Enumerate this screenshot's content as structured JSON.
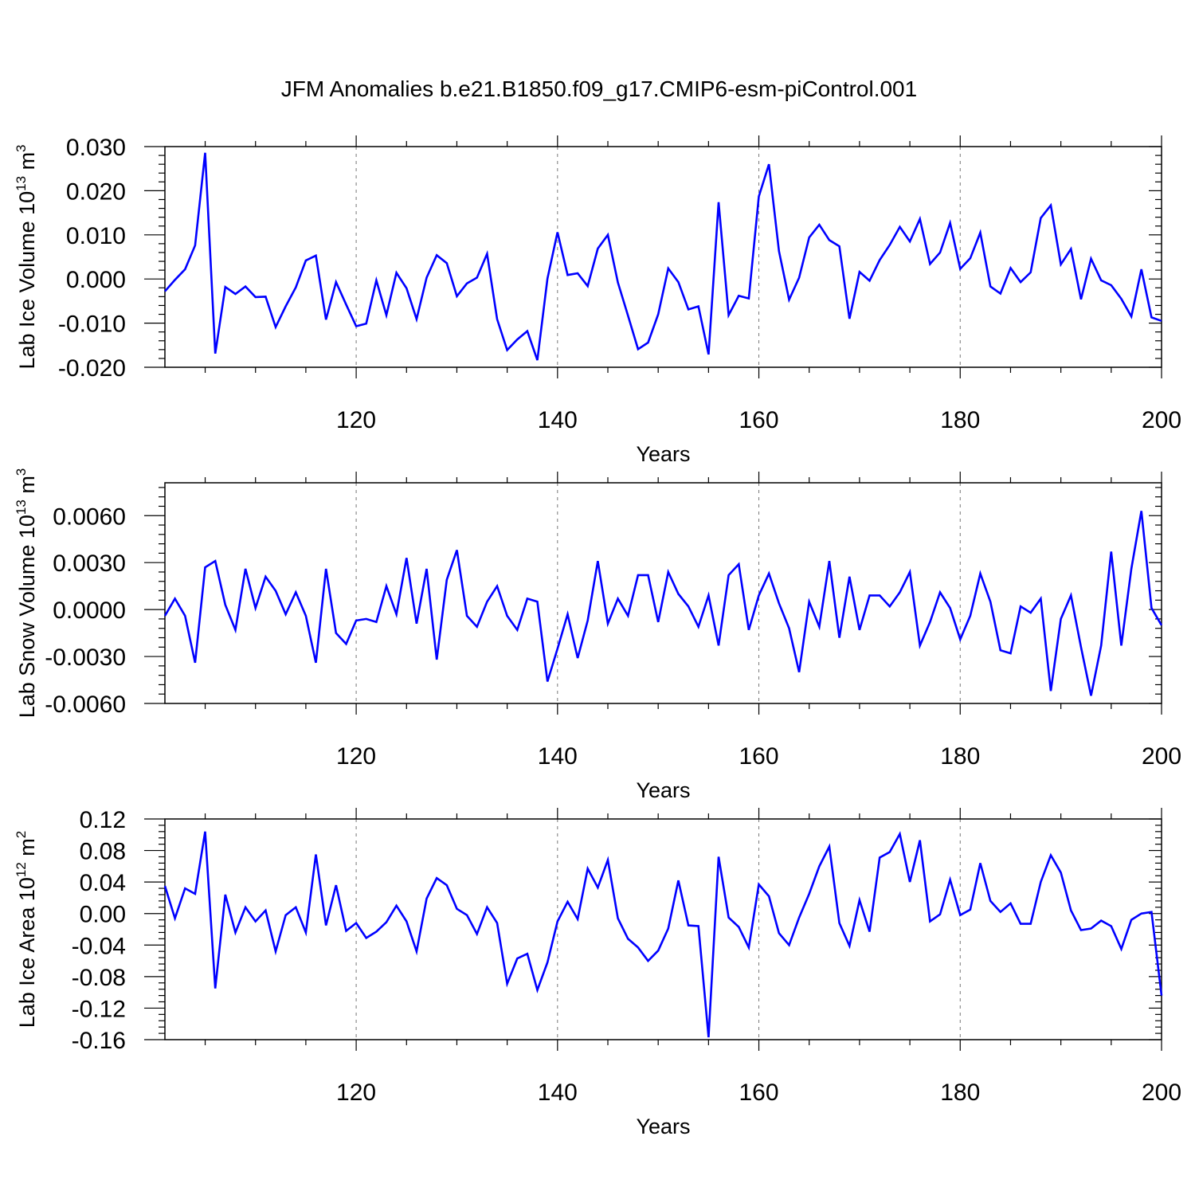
{
  "title": "JFM Anomalies b.e21.B1850.f09_g17.CMIP6-esm-piControl.001",
  "line_color": "#0000ff",
  "chart_data": [
    {
      "type": "line",
      "ylabel": {
        "main": "Lab Ice Volume 10",
        "sup": "13",
        "unit": " m",
        "unit_sup": "3"
      },
      "xlabel": "Years",
      "xlim": [
        101,
        200
      ],
      "ylim": [
        -0.02,
        0.03
      ],
      "xticks": [
        120,
        140,
        160,
        180,
        200
      ],
      "yticks": [
        "0.030",
        "0.020",
        "0.010",
        "0.000",
        "-0.010",
        "-0.020"
      ],
      "ytick_values": [
        0.03,
        0.02,
        0.01,
        0.0,
        -0.01,
        -0.02
      ],
      "grid_x": [
        120,
        140,
        160,
        180
      ],
      "series": [
        {
          "x_start": 101,
          "values": [
            -0.0028,
            -0.0002,
            0.0022,
            0.0076,
            0.0286,
            -0.0169,
            -0.0018,
            -0.0034,
            -0.0017,
            -0.0041,
            -0.004,
            -0.0109,
            -0.0062,
            -0.0019,
            0.0042,
            0.0053,
            -0.0092,
            -0.0007,
            -0.0058,
            -0.0107,
            -0.0101,
            -0.0003,
            -0.0082,
            0.0014,
            -0.0021,
            -0.0091,
            0.0003,
            0.0054,
            0.0036,
            -0.0039,
            -0.001,
            0.0003,
            0.0057,
            -0.0091,
            -0.0161,
            -0.0137,
            -0.0118,
            -0.0184,
            0.0001,
            0.0106,
            0.0009,
            0.0013,
            -0.0016,
            0.0069,
            0.01,
            -0.0008,
            -0.0083,
            -0.0159,
            -0.0144,
            -0.008,
            0.0024,
            -0.0007,
            -0.0069,
            -0.0062,
            -0.0171,
            0.0174,
            -0.0082,
            -0.0038,
            -0.0044,
            0.0187,
            0.026,
            0.0063,
            -0.0047,
            0.0003,
            0.0094,
            0.0123,
            0.0088,
            0.0074,
            -0.009,
            0.0016,
            -0.0004,
            0.0043,
            0.0077,
            0.0118,
            0.0085,
            0.0136,
            0.0034,
            0.006,
            0.0127,
            0.0023,
            0.0047,
            0.0105,
            -0.0017,
            -0.0033,
            0.0025,
            -0.0007,
            0.0015,
            0.0138,
            0.0167,
            0.0033,
            0.0068,
            -0.0046,
            0.0046,
            -0.0003,
            -0.0014,
            -0.0045,
            -0.0085,
            0.0022,
            -0.0087,
            -0.0095
          ]
        }
      ]
    },
    {
      "type": "line",
      "ylabel": {
        "main": "Lab Snow Volume 10",
        "sup": "13",
        "unit": " m",
        "unit_sup": "3"
      },
      "xlabel": "Years",
      "xlim": [
        101,
        200
      ],
      "ylim": [
        -0.006,
        0.0081
      ],
      "xticks": [
        120,
        140,
        160,
        180,
        200
      ],
      "yticks": [
        "0.0060",
        "0.0030",
        "0.0000",
        "-0.0030",
        "-0.0060"
      ],
      "ytick_values": [
        0.006,
        0.003,
        0.0,
        -0.003,
        -0.006
      ],
      "grid_x": [
        120,
        140,
        160,
        180
      ],
      "series": [
        {
          "x_start": 101,
          "values": [
            -0.0004,
            0.0007,
            -0.0004,
            -0.0034,
            0.0027,
            0.0031,
            0.0003,
            -0.0013,
            0.0026,
            0.0001,
            0.0021,
            0.0012,
            -0.0003,
            0.0011,
            -0.0004,
            -0.0034,
            0.0026,
            -0.0015,
            -0.0022,
            -0.0007,
            -0.0006,
            -0.0008,
            0.0015,
            -0.0003,
            0.0033,
            -0.0009,
            0.0026,
            -0.0032,
            0.0019,
            0.0038,
            -0.0004,
            -0.0011,
            0.0005,
            0.0015,
            -0.0004,
            -0.0013,
            0.0007,
            0.0005,
            -0.0046,
            -0.0025,
            -0.0003,
            -0.0031,
            -0.0007,
            0.0031,
            -0.0009,
            0.0007,
            -0.0004,
            0.0022,
            0.0022,
            -0.0008,
            0.0024,
            0.001,
            0.0002,
            -0.0011,
            0.0009,
            -0.0023,
            0.0022,
            0.0029,
            -0.0013,
            0.0009,
            0.0023,
            0.0004,
            -0.0012,
            -0.004,
            0.0005,
            -0.0011,
            0.0031,
            -0.0018,
            0.0021,
            -0.0013,
            0.0009,
            0.0009,
            0.0002,
            0.0011,
            0.0024,
            -0.0023,
            -0.0008,
            0.0011,
            0.0001,
            -0.0019,
            -0.0004,
            0.0023,
            0.0005,
            -0.0026,
            -0.0028,
            0.0002,
            -0.0002,
            0.0007,
            -0.0052,
            -0.0006,
            0.0009,
            -0.0024,
            -0.0055,
            -0.0023,
            0.0037,
            -0.0023,
            0.0026,
            0.0063,
            0.0001,
            -0.001
          ]
        }
      ]
    },
    {
      "type": "line",
      "ylabel": {
        "main": "Lab Ice Area 10",
        "sup": "12",
        "unit": " m",
        "unit_sup": "2"
      },
      "xlabel": "Years",
      "xlim": [
        101,
        200
      ],
      "ylim": [
        -0.16,
        0.12
      ],
      "xticks": [
        120,
        140,
        160,
        180,
        200
      ],
      "yticks": [
        "0.12",
        "0.08",
        "0.04",
        "0.00",
        "-0.04",
        "-0.08",
        "-0.12",
        "-0.16"
      ],
      "ytick_values": [
        0.12,
        0.08,
        0.04,
        0.0,
        -0.04,
        -0.08,
        -0.12,
        -0.16
      ],
      "grid_x": [
        120,
        140,
        160,
        180
      ],
      "series": [
        {
          "x_start": 101,
          "values": [
            0.035,
            -0.006,
            0.032,
            0.025,
            0.104,
            -0.095,
            0.024,
            -0.024,
            0.008,
            -0.01,
            0.004,
            -0.048,
            -0.002,
            0.008,
            -0.024,
            0.075,
            -0.015,
            0.036,
            -0.022,
            -0.012,
            -0.031,
            -0.023,
            -0.011,
            0.01,
            -0.01,
            -0.048,
            0.019,
            0.045,
            0.036,
            0.006,
            -0.002,
            -0.026,
            0.008,
            -0.012,
            -0.089,
            -0.057,
            -0.051,
            -0.097,
            -0.062,
            -0.01,
            0.015,
            -0.007,
            0.057,
            0.033,
            0.068,
            -0.006,
            -0.032,
            -0.043,
            -0.06,
            -0.047,
            -0.019,
            0.042,
            -0.015,
            -0.016,
            -0.157,
            0.072,
            -0.005,
            -0.017,
            -0.043,
            0.037,
            0.022,
            -0.025,
            -0.04,
            -0.005,
            0.025,
            0.06,
            0.085,
            -0.012,
            -0.041,
            0.017,
            -0.023,
            0.071,
            0.078,
            0.101,
            0.04,
            0.093,
            -0.01,
            -0.001,
            0.043,
            -0.002,
            0.005,
            0.064,
            0.016,
            0.002,
            0.013,
            -0.013,
            -0.013,
            0.04,
            0.074,
            0.052,
            0.004,
            -0.021,
            -0.019,
            -0.009,
            -0.016,
            -0.045,
            -0.008,
            0.0,
            0.002,
            -0.104
          ]
        }
      ]
    }
  ]
}
